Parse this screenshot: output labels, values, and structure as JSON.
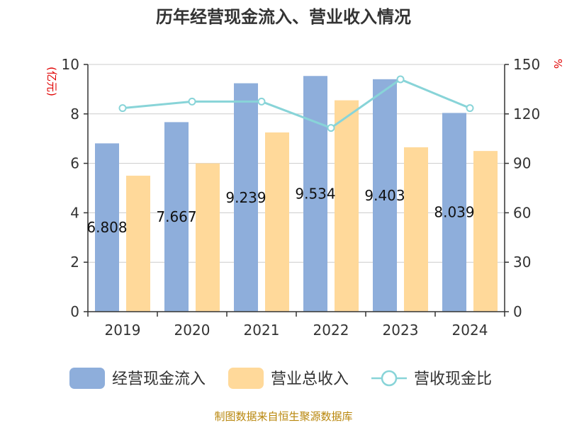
{
  "chart_data": {
    "type": "bar",
    "title": "历年经营现金流入、营业收入情况",
    "categories": [
      "2019",
      "2020",
      "2021",
      "2022",
      "2023",
      "2024"
    ],
    "series": [
      {
        "name": "经营现金流入",
        "type": "bar",
        "axis": "left",
        "color": "#8eaedb",
        "values": [
          6.808,
          7.667,
          9.239,
          9.534,
          9.403,
          8.039
        ],
        "labels": [
          "6.808",
          "7.667",
          "9.239",
          "9.534",
          "9.403",
          "8.039"
        ]
      },
      {
        "name": "营业总收入",
        "type": "bar",
        "axis": "left",
        "color": "#ffd99a",
        "values": [
          5.5,
          6.0,
          7.25,
          8.55,
          6.65,
          6.5
        ]
      },
      {
        "name": "营收现金比",
        "type": "line",
        "axis": "right",
        "color": "#88d4d8",
        "values": [
          123.5,
          127.5,
          127.5,
          111.5,
          141.0,
          123.5
        ]
      }
    ],
    "ylabel_left": "(亿元)",
    "ylabel_right": "%",
    "ylim_left": [
      0,
      10
    ],
    "ylim_right": [
      0,
      150
    ],
    "yticks_left": [
      "0",
      "2",
      "4",
      "6",
      "8",
      "10"
    ],
    "yticks_right": [
      "0",
      "30",
      "60",
      "90",
      "120",
      "150"
    ],
    "grid": true,
    "legend_position": "bottom"
  },
  "footer": {
    "source": "制图数据来自恒生聚源数据库"
  }
}
